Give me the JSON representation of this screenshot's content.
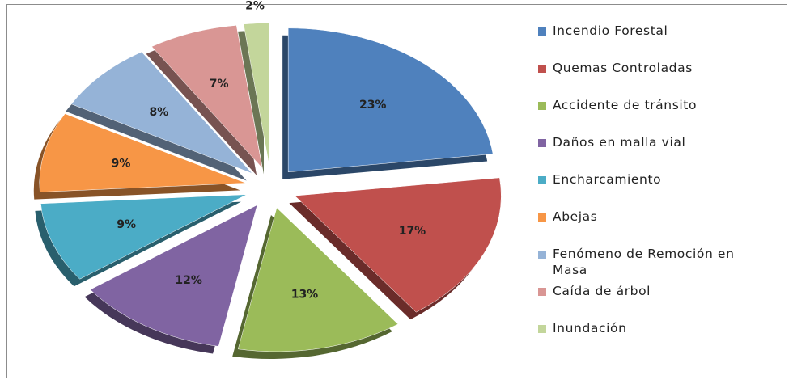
{
  "chart_data": {
    "type": "pie",
    "categories": [
      "Incendio Forestal",
      "Quemas Controladas",
      "Accidente de tránsito",
      "Daños en malla vial",
      "Encharcamiento",
      "Abejas",
      "Fenómeno de Remoción en Masa",
      "Caída de árbol",
      "Inundación"
    ],
    "values": [
      23,
      17,
      13,
      12,
      9,
      9,
      8,
      7,
      2
    ],
    "value_labels": [
      "23%",
      "17%",
      "13%",
      "12%",
      "9%",
      "9%",
      "8%",
      "7%",
      "2%"
    ],
    "colors": [
      "#4f81bd",
      "#c0504d",
      "#9bbb59",
      "#8064a2",
      "#4bacc6",
      "#f79646",
      "#95b3d7",
      "#d99694",
      "#c3d69b"
    ],
    "legend": "right"
  }
}
